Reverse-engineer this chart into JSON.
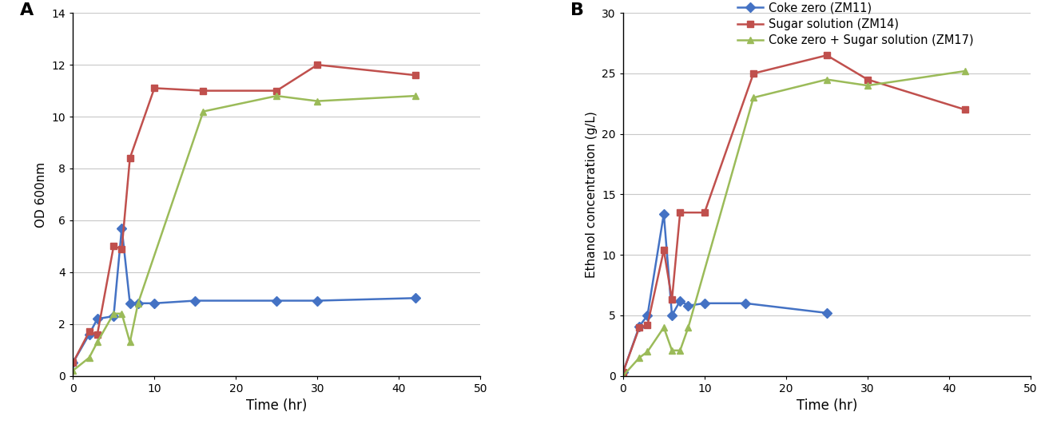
{
  "panel_A": {
    "title": "A",
    "xlabel": "Time (hr)",
    "ylabel": "OD 600nm",
    "xlim": [
      0,
      50
    ],
    "ylim": [
      0,
      14
    ],
    "yticks": [
      0,
      2,
      4,
      6,
      8,
      10,
      12,
      14
    ],
    "xticks": [
      0,
      10,
      20,
      30,
      40,
      50
    ],
    "series": {
      "coke_zero": {
        "x": [
          0,
          2,
          3,
          5,
          6,
          7,
          8,
          10,
          15,
          25,
          30,
          42
        ],
        "y": [
          0.5,
          1.6,
          2.2,
          2.3,
          5.7,
          2.8,
          2.8,
          2.8,
          2.9,
          2.9,
          2.9,
          3.0
        ],
        "color": "#4472C4",
        "marker": "D"
      },
      "sugar_solution": {
        "x": [
          0,
          2,
          3,
          5,
          6,
          7,
          10,
          16,
          25,
          30,
          42
        ],
        "y": [
          0.5,
          1.7,
          1.6,
          5.0,
          4.9,
          8.4,
          11.1,
          11.0,
          11.0,
          12.0,
          11.6
        ],
        "color": "#C0504D",
        "marker": "s"
      },
      "coke_sugar": {
        "x": [
          0,
          2,
          3,
          5,
          6,
          7,
          8,
          16,
          25,
          30,
          42
        ],
        "y": [
          0.2,
          0.7,
          1.3,
          2.4,
          2.4,
          1.3,
          2.8,
          10.2,
          10.8,
          10.6,
          10.8
        ],
        "color": "#9BBB59",
        "marker": "^"
      }
    }
  },
  "panel_B": {
    "title": "B",
    "xlabel": "Time (hr)",
    "ylabel": "Ethanol concentration (g/L)",
    "xlim": [
      0,
      50
    ],
    "ylim": [
      0,
      30
    ],
    "yticks": [
      0,
      5,
      10,
      15,
      20,
      25,
      30
    ],
    "xticks": [
      0,
      10,
      20,
      30,
      40,
      50
    ],
    "series": {
      "coke_zero": {
        "x": [
          0,
          2,
          3,
          5,
          6,
          7,
          8,
          10,
          15,
          25
        ],
        "y": [
          0.3,
          4.1,
          5.0,
          13.4,
          5.0,
          6.2,
          5.8,
          6.0,
          6.0,
          5.2
        ],
        "color": "#4472C4",
        "marker": "D"
      },
      "sugar_solution": {
        "x": [
          0,
          2,
          3,
          5,
          6,
          7,
          10,
          16,
          25,
          30,
          42
        ],
        "y": [
          0.3,
          4.0,
          4.2,
          10.4,
          6.3,
          13.5,
          13.5,
          25.0,
          26.5,
          24.5,
          22.0
        ],
        "color": "#C0504D",
        "marker": "s"
      },
      "coke_sugar": {
        "x": [
          0,
          2,
          3,
          5,
          6,
          7,
          8,
          16,
          25,
          30,
          42
        ],
        "y": [
          0.0,
          1.5,
          2.0,
          4.0,
          2.1,
          2.1,
          4.0,
          23.0,
          24.5,
          24.0,
          25.2
        ],
        "color": "#9BBB59",
        "marker": "^"
      }
    }
  },
  "legend": {
    "labels": [
      "Coke zero (ZM11)",
      "Sugar solution (ZM14)",
      "Coke zero + Sugar solution (ZM17)"
    ],
    "colors": [
      "#4472C4",
      "#C0504D",
      "#9BBB59"
    ],
    "markers": [
      "D",
      "s",
      "^"
    ]
  },
  "background_color": "#FFFFFF",
  "grid_color": "#C8C8C8"
}
